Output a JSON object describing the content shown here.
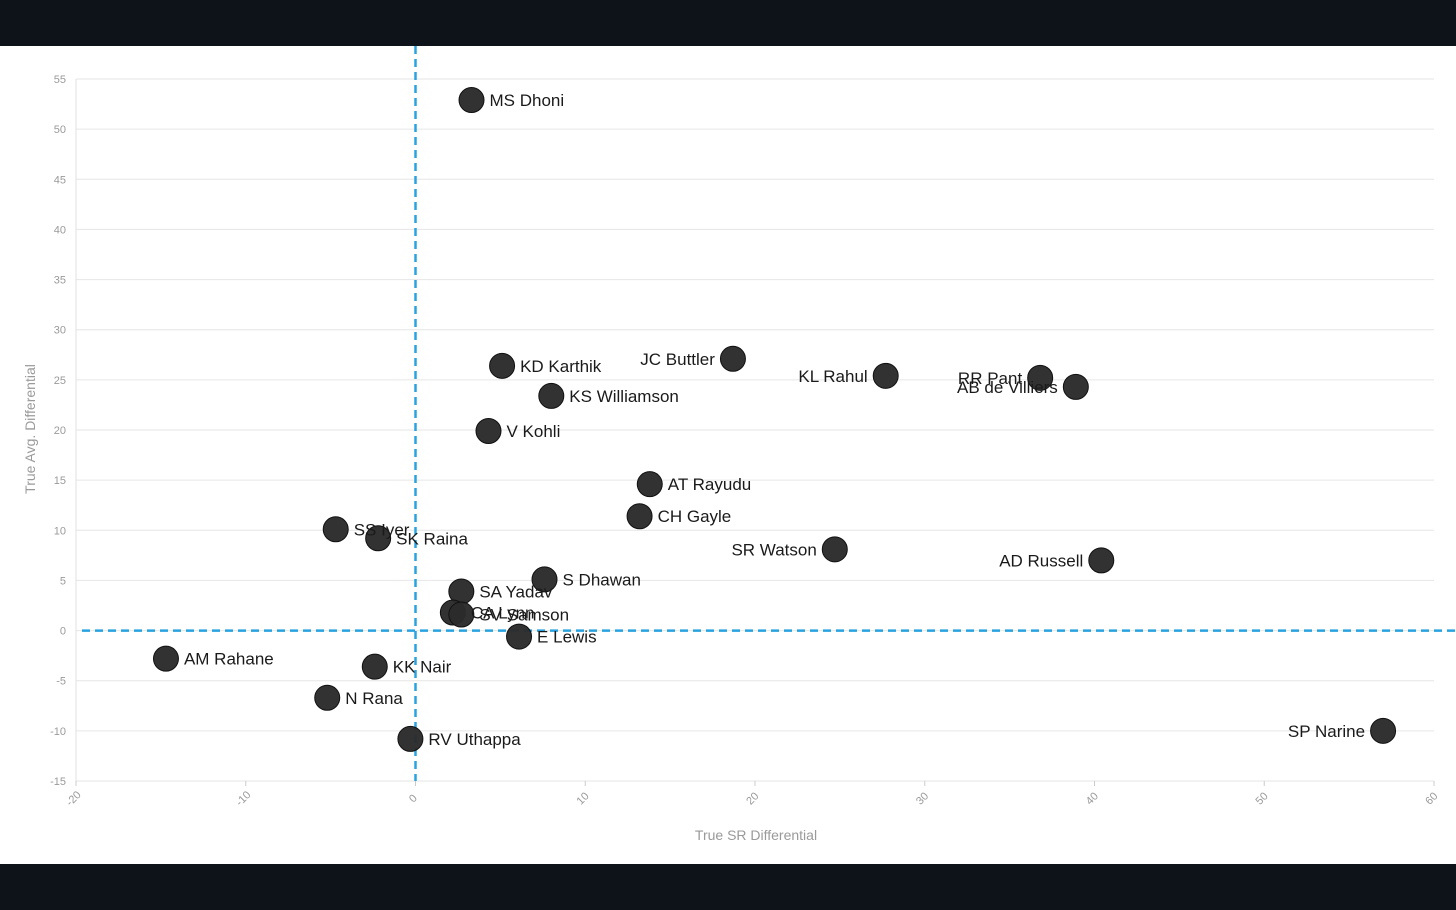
{
  "chart_data": {
    "type": "scatter",
    "xlabel": "True SR Differential",
    "ylabel": "True Avg. Differential",
    "xlim": [
      -20,
      60
    ],
    "ylim": [
      -15,
      55
    ],
    "xticks": [
      -20,
      -10,
      0,
      10,
      20,
      30,
      40,
      50,
      60
    ],
    "yticks": [
      -15,
      -10,
      -5,
      0,
      5,
      10,
      15,
      20,
      25,
      30,
      35,
      40,
      45,
      50,
      55
    ],
    "grid": "horizontal",
    "reference_lines": {
      "x": 0,
      "y": 0,
      "style": "dashed",
      "color": "#29a3e0"
    },
    "point_color": "#2b2b2b",
    "points": [
      {
        "name": "MS Dhoni",
        "x": 3.3,
        "y": 52.9,
        "label_side": "right"
      },
      {
        "name": "KD Karthik",
        "x": 5.1,
        "y": 26.4,
        "label_side": "right"
      },
      {
        "name": "JC Buttler",
        "x": 18.7,
        "y": 27.1,
        "label_side": "left"
      },
      {
        "name": "KL Rahul",
        "x": 27.7,
        "y": 25.4,
        "label_side": "left"
      },
      {
        "name": "RR Pant",
        "x": 36.8,
        "y": 25.2,
        "label_side": "left"
      },
      {
        "name": "AB de Villiers",
        "x": 38.9,
        "y": 24.3,
        "label_side": "left"
      },
      {
        "name": "KS Williamson",
        "x": 8.0,
        "y": 23.4,
        "label_side": "right"
      },
      {
        "name": "V Kohli",
        "x": 4.3,
        "y": 19.9,
        "label_side": "right"
      },
      {
        "name": "AT Rayudu",
        "x": 13.8,
        "y": 14.6,
        "label_side": "right"
      },
      {
        "name": "CH Gayle",
        "x": 13.2,
        "y": 11.4,
        "label_side": "right"
      },
      {
        "name": "SS Iyer",
        "x": -4.7,
        "y": 10.1,
        "label_side": "right"
      },
      {
        "name": "SK Raina",
        "x": -2.2,
        "y": 9.2,
        "label_side": "right"
      },
      {
        "name": "SR Watson",
        "x": 24.7,
        "y": 8.1,
        "label_side": "left"
      },
      {
        "name": "AD Russell",
        "x": 40.4,
        "y": 7.0,
        "label_side": "left"
      },
      {
        "name": "S Dhawan",
        "x": 7.6,
        "y": 5.1,
        "label_side": "right"
      },
      {
        "name": "SA Yadav",
        "x": 2.7,
        "y": 3.9,
        "label_side": "right"
      },
      {
        "name": "CA Lynn",
        "x": 2.2,
        "y": 1.8,
        "label_side": "right"
      },
      {
        "name": "SV Samson",
        "x": 2.7,
        "y": 1.6,
        "label_side": "right"
      },
      {
        "name": "E Lewis",
        "x": 6.1,
        "y": -0.6,
        "label_side": "right"
      },
      {
        "name": "AM Rahane",
        "x": -14.7,
        "y": -2.8,
        "label_side": "right"
      },
      {
        "name": "KK Nair",
        "x": -2.4,
        "y": -3.6,
        "label_side": "right"
      },
      {
        "name": "N Rana",
        "x": -5.2,
        "y": -6.7,
        "label_side": "right"
      },
      {
        "name": "RV Uthappa",
        "x": -0.3,
        "y": -10.8,
        "label_side": "right"
      },
      {
        "name": "SP Narine",
        "x": 57.0,
        "y": -10.0,
        "label_side": "left"
      }
    ]
  }
}
